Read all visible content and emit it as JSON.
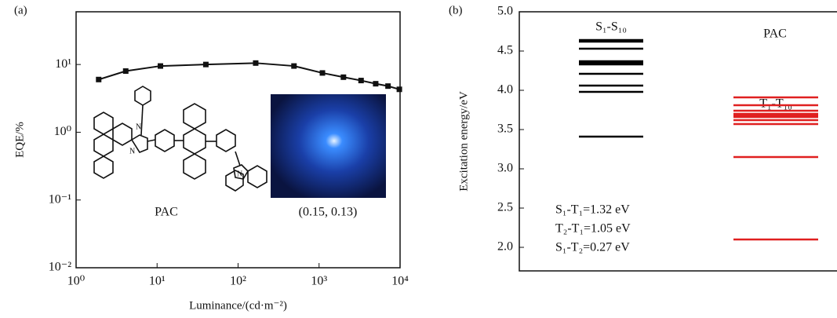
{
  "chart_data": [
    {
      "type": "line",
      "panel": "(a)",
      "xlabel": "Luminance/(cd·m⁻²)",
      "ylabel": "EQE/%",
      "log_x": true,
      "log_y": true,
      "color": "#111111",
      "x": [
        1.9,
        4.1,
        11,
        40,
        165,
        490,
        1100,
        2000,
        3300,
        5000,
        7100,
        9800
      ],
      "values": [
        6,
        8,
        9.5,
        10,
        10.5,
        9.5,
        7.5,
        6.5,
        5.8,
        5.2,
        4.8,
        4.3
      ],
      "xlim": [
        1,
        10000
      ],
      "ylim": [
        0.01,
        60
      ],
      "xticks": [
        {
          "value": 1,
          "label": "10⁰"
        },
        {
          "value": 10,
          "label": "10¹"
        },
        {
          "value": 100,
          "label": "10²"
        },
        {
          "value": 1000,
          "label": "10³"
        },
        {
          "value": 10000,
          "label": "10⁴"
        }
      ],
      "yticks": [
        {
          "value": 0.01,
          "label": "10⁻²"
        },
        {
          "value": 0.1,
          "label": "10⁻¹"
        },
        {
          "value": 1,
          "label": "10⁰"
        },
        {
          "value": 10,
          "label": "10¹"
        }
      ],
      "annotations": [
        "PAC",
        "(0.15, 0.13)"
      ]
    },
    {
      "type": "level",
      "panel": "(b)",
      "ylabel": "Excitation energy/eV",
      "ylim": [
        1.7,
        5.0
      ],
      "yticks": [
        {
          "value": 2,
          "label": "2.0"
        },
        2.5,
        {
          "value": 3,
          "label": "3.0"
        },
        3.5,
        {
          "value": 4,
          "label": "4.0"
        },
        4.5,
        {
          "value": 5,
          "label": "5.0"
        }
      ],
      "series": [
        {
          "name": "S₁-S₁₀",
          "color": "#000000",
          "values": [
            4.64,
            4.62,
            4.53,
            4.37,
            4.35,
            4.33,
            4.21,
            4.06,
            3.98,
            3.41
          ]
        },
        {
          "name": "T₁-T₁₀",
          "color": "#e02020",
          "values": [
            3.91,
            3.81,
            3.74,
            3.7,
            3.68,
            3.66,
            3.62,
            3.57,
            3.15,
            2.1
          ]
        }
      ],
      "annotations": [
        "PAC",
        "S₁-T₁=1.32 eV",
        "T₂-T₁=1.05 eV",
        "S₁-T₂=0.27 eV"
      ]
    }
  ]
}
